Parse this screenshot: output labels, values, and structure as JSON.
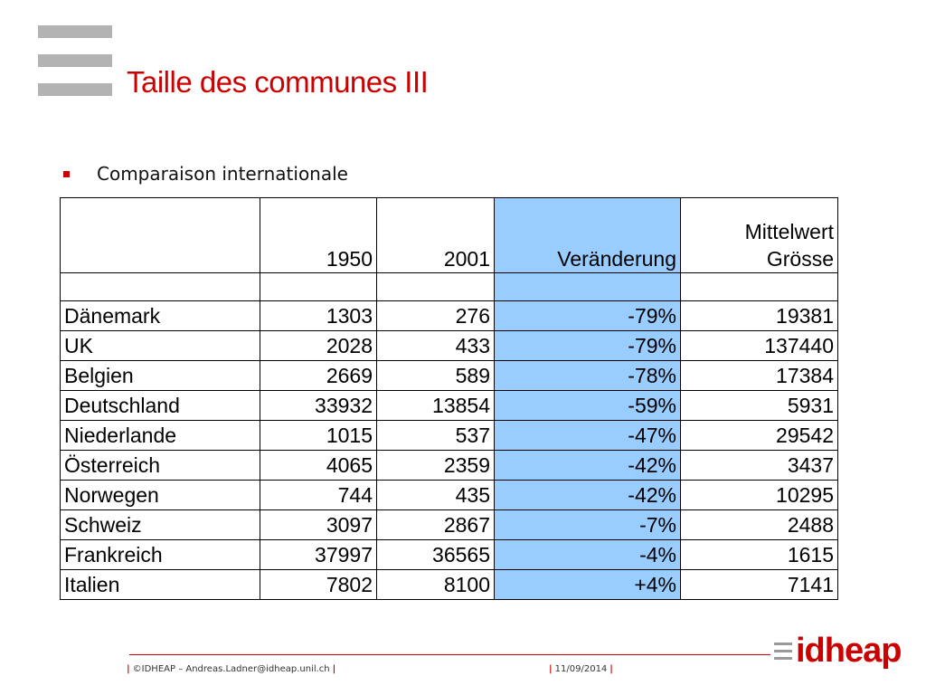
{
  "slide": {
    "title": "Taille des communes III",
    "bullet": "Comparaison internationale"
  },
  "table": {
    "headers": [
      "",
      "1950",
      "2001",
      "Veränderung",
      "Mittelwert\nGrösse"
    ],
    "header_lines": {
      "col4_line1": "Mittelwert",
      "col4_line2": "Grösse"
    },
    "rows": [
      [
        "Dänemark",
        "1303",
        "276",
        "-79%",
        "19381"
      ],
      [
        "UK",
        "2028",
        "433",
        "-79%",
        "137440"
      ],
      [
        "Belgien",
        "2669",
        "589",
        "-78%",
        "17384"
      ],
      [
        "Deutschland",
        "33932",
        "13854",
        "-59%",
        "5931"
      ],
      [
        "Niederlande",
        "1015",
        "537",
        "-47%",
        "29542"
      ],
      [
        "Österreich",
        "4065",
        "2359",
        "-42%",
        "3437"
      ],
      [
        "Norwegen",
        "744",
        "435",
        "-42%",
        "10295"
      ],
      [
        "Schweiz",
        "3097",
        "2867",
        "-7%",
        "2488"
      ],
      [
        "Frankreich",
        "37997",
        "36565",
        "-4%",
        "1615"
      ],
      [
        "Italien",
        "7802",
        "8100",
        "+4%",
        "7141"
      ]
    ]
  },
  "footer": {
    "copyright": "©IDHEAP – Andreas.Ladner@idheap.unil.ch",
    "date": "11/09/2014",
    "brand": "idheap"
  },
  "colors": {
    "accent": "#cc0000",
    "highlight_column": "#99ccff",
    "logo_bars": "#b3b3b3"
  }
}
